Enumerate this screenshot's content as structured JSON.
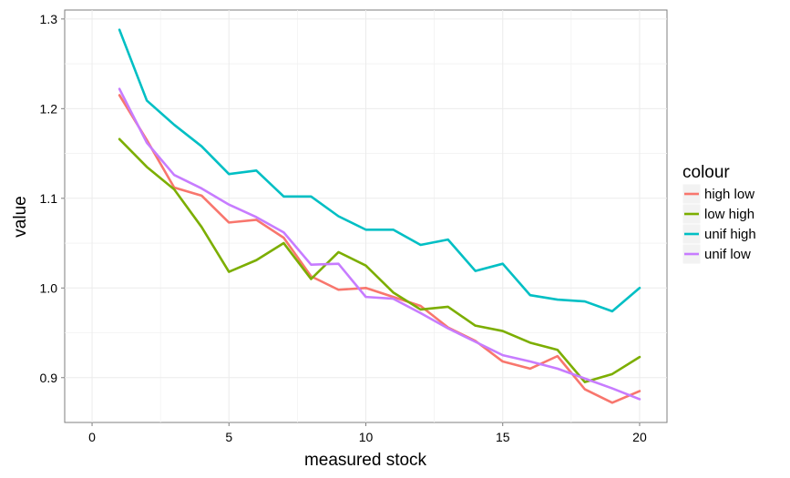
{
  "chart_data": {
    "type": "line",
    "title": "",
    "xlabel": "measured stock",
    "ylabel": "value",
    "xlim": [
      -1,
      21
    ],
    "ylim": [
      0.85,
      1.31
    ],
    "xticks": [
      "0",
      "5",
      "10",
      "15",
      "20"
    ],
    "yticks": [
      "0.9",
      "1.0",
      "1.1",
      "1.2",
      "1.3"
    ],
    "grid": true,
    "legend": {
      "title": "colour",
      "position": "right"
    },
    "x": [
      1,
      2,
      3,
      4,
      5,
      6,
      7,
      8,
      9,
      10,
      11,
      12,
      13,
      14,
      15,
      16,
      17,
      18,
      19,
      20
    ],
    "series": [
      {
        "name": "high low",
        "color": "#F8766D",
        "values": [
          1.215,
          1.165,
          1.112,
          1.103,
          1.073,
          1.076,
          1.056,
          1.013,
          0.998,
          1.0,
          0.99,
          0.98,
          0.956,
          0.941,
          0.918,
          0.91,
          0.924,
          0.887,
          0.872,
          0.885
        ]
      },
      {
        "name": "low high",
        "color": "#7CAE00",
        "values": [
          1.166,
          1.135,
          1.11,
          1.068,
          1.018,
          1.031,
          1.05,
          1.01,
          1.04,
          1.025,
          0.995,
          0.976,
          0.979,
          0.958,
          0.952,
          0.939,
          0.931,
          0.895,
          0.904,
          0.923
        ]
      },
      {
        "name": "unif high",
        "color": "#00BFC4",
        "values": [
          1.288,
          1.209,
          1.182,
          1.158,
          1.127,
          1.131,
          1.102,
          1.102,
          1.08,
          1.065,
          1.065,
          1.048,
          1.054,
          1.019,
          1.027,
          0.992,
          0.987,
          0.985,
          0.974,
          1.0
        ]
      },
      {
        "name": "unif low",
        "color": "#C77CFF",
        "values": [
          1.222,
          1.162,
          1.126,
          1.111,
          1.093,
          1.079,
          1.062,
          1.026,
          1.027,
          0.99,
          0.988,
          0.972,
          0.955,
          0.94,
          0.925,
          0.918,
          0.91,
          0.899,
          0.888,
          0.876
        ]
      }
    ]
  }
}
